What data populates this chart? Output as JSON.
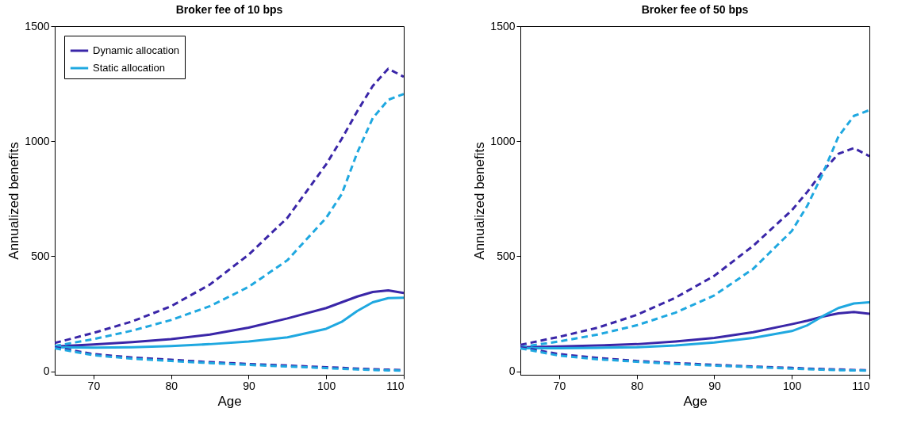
{
  "chart_data": [
    {
      "type": "line",
      "title": "Broker fee of 10 bps",
      "xlabel": "Age",
      "ylabel": "Annualized benefits",
      "x": [
        65,
        70,
        75,
        80,
        85,
        90,
        95,
        100,
        102,
        104,
        106,
        108,
        110
      ],
      "xlim": [
        65,
        110
      ],
      "xticks": [
        70,
        80,
        90,
        100,
        110
      ],
      "ylim": [
        -15,
        1500
      ],
      "yticks": [
        0,
        500,
        1000,
        1500
      ],
      "grid": false,
      "legend": "top left",
      "series": [
        {
          "name": "Dynamic allocation",
          "color": "#3a26a8",
          "line_style": "solid",
          "values": [
            108,
            117,
            127,
            140,
            160,
            190,
            230,
            275,
            300,
            325,
            345,
            352,
            340
          ]
        },
        {
          "name": "Static allocation",
          "color": "#1fa8e0",
          "line_style": "solid",
          "values": [
            105,
            103,
            105,
            110,
            118,
            130,
            148,
            185,
            215,
            262,
            300,
            318,
            320
          ]
        },
        {
          "color": "#3a26a8",
          "line_style": "dashed",
          "values": [
            123,
            167,
            217,
            283,
            377,
            507,
            667,
            900,
            1010,
            1130,
            1240,
            1315,
            1280
          ]
        },
        {
          "color": "#1fa8e0",
          "line_style": "dashed",
          "values": [
            110,
            140,
            177,
            223,
            283,
            367,
            483,
            667,
            770,
            950,
            1100,
            1180,
            1205
          ]
        },
        {
          "color": "#3a26a8",
          "line_style": "dashed",
          "values": [
            105,
            75,
            60,
            50,
            40,
            32,
            25,
            18,
            15,
            12,
            9,
            7,
            5
          ]
        },
        {
          "color": "#1fa8e0",
          "line_style": "dashed",
          "values": [
            100,
            70,
            55,
            45,
            36,
            28,
            21,
            14,
            11,
            8,
            6,
            4,
            3
          ]
        }
      ]
    },
    {
      "type": "line",
      "title": "Broker fee of 50 bps",
      "xlabel": "Age",
      "ylabel": "Annualized benefits",
      "x": [
        65,
        70,
        75,
        80,
        85,
        90,
        95,
        100,
        102,
        104,
        106,
        108,
        110
      ],
      "xlim": [
        65,
        110
      ],
      "xticks": [
        70,
        80,
        90,
        100,
        110
      ],
      "ylim": [
        -15,
        1500
      ],
      "yticks": [
        0,
        500,
        1000,
        1500
      ],
      "grid": false,
      "series": [
        {
          "color": "#3a26a8",
          "line_style": "solid",
          "values": [
            105,
            108,
            112,
            118,
            130,
            145,
            170,
            205,
            220,
            238,
            252,
            258,
            250
          ]
        },
        {
          "color": "#1fa8e0",
          "line_style": "solid",
          "values": [
            100,
            100,
            102,
            105,
            112,
            125,
            145,
            175,
            200,
            240,
            275,
            295,
            300
          ]
        },
        {
          "color": "#3a26a8",
          "line_style": "dashed",
          "values": [
            115,
            150,
            190,
            245,
            320,
            415,
            545,
            700,
            780,
            870,
            945,
            970,
            935
          ]
        },
        {
          "color": "#1fa8e0",
          "line_style": "dashed",
          "values": [
            105,
            130,
            160,
            200,
            255,
            330,
            445,
            610,
            720,
            860,
            1020,
            1110,
            1135
          ]
        },
        {
          "color": "#3a26a8",
          "line_style": "dashed",
          "values": [
            105,
            75,
            58,
            45,
            36,
            28,
            21,
            15,
            12,
            10,
            8,
            6,
            5
          ]
        },
        {
          "color": "#1fa8e0",
          "line_style": "dashed",
          "values": [
            100,
            68,
            52,
            42,
            32,
            25,
            18,
            12,
            9,
            7,
            5,
            4,
            3
          ]
        }
      ]
    }
  ]
}
